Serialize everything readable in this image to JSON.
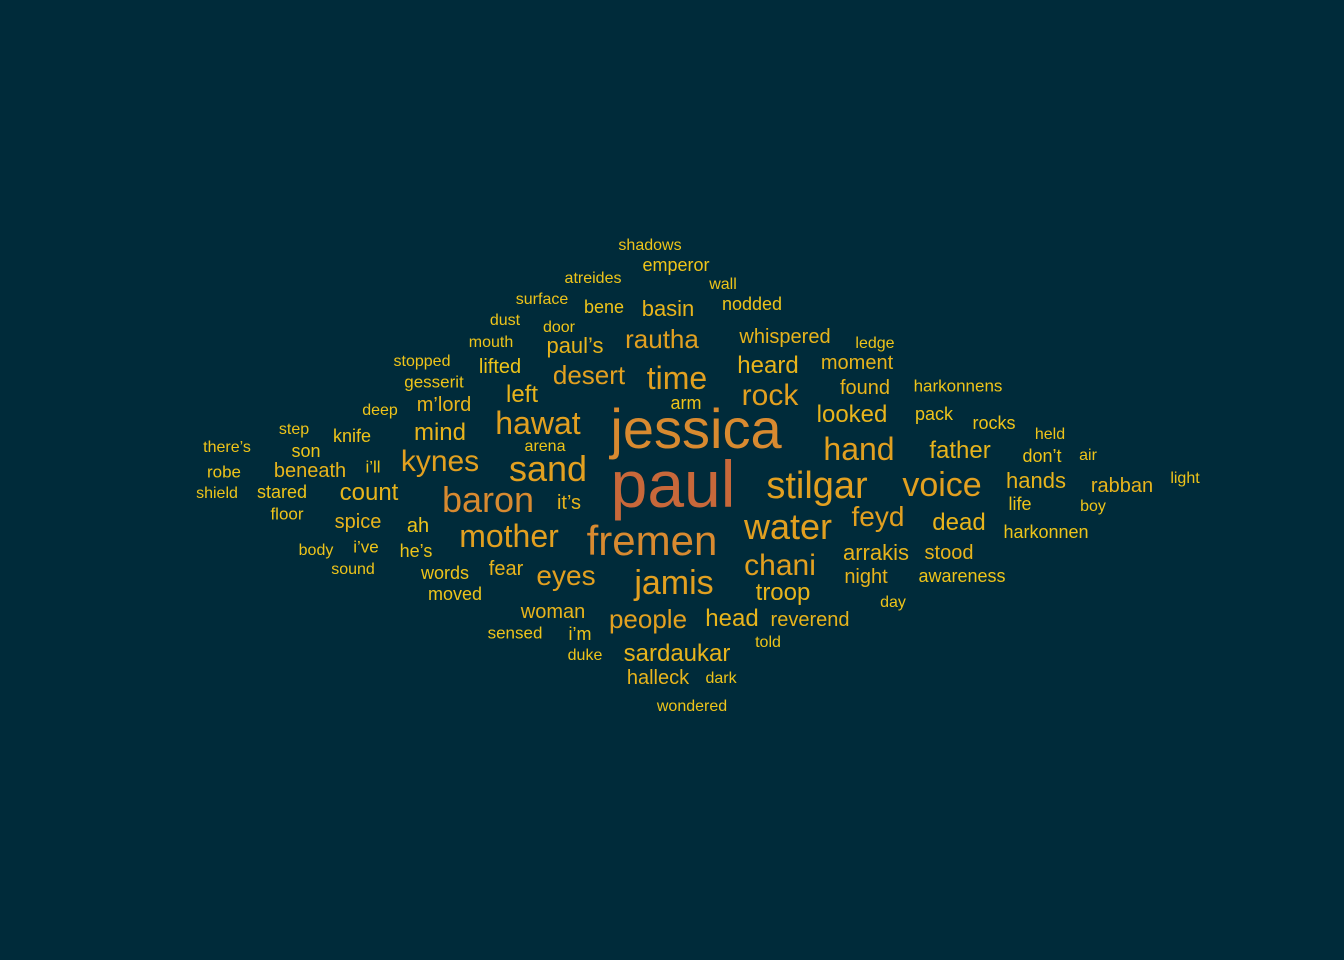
{
  "colors": {
    "background": "#002b3a",
    "rust": "#c8683a",
    "orange": "#d88a30",
    "amber": "#e2a020",
    "gold": "#e8b41c",
    "yellow": "#eec41a"
  },
  "words": [
    {
      "text": "paul",
      "tone": "rust"
    },
    {
      "text": "jessica",
      "tone": "orange"
    },
    {
      "text": "fremen",
      "tone": "orange"
    },
    {
      "text": "stilgar",
      "tone": "amber"
    },
    {
      "text": "water",
      "tone": "amber"
    },
    {
      "text": "baron",
      "tone": "orange"
    },
    {
      "text": "sand",
      "tone": "amber"
    },
    {
      "text": "jamis",
      "tone": "amber"
    },
    {
      "text": "voice",
      "tone": "amber"
    },
    {
      "text": "mother",
      "tone": "amber"
    },
    {
      "text": "hawat",
      "tone": "amber"
    },
    {
      "text": "time",
      "tone": "amber"
    },
    {
      "text": "hand",
      "tone": "amber"
    },
    {
      "text": "chani",
      "tone": "amber"
    },
    {
      "text": "kynes",
      "tone": "amber"
    },
    {
      "text": "rock",
      "tone": "amber"
    },
    {
      "text": "desert",
      "tone": "amber"
    },
    {
      "text": "eyes",
      "tone": "amber"
    },
    {
      "text": "feyd",
      "tone": "amber"
    },
    {
      "text": "people",
      "tone": "amber"
    },
    {
      "text": "rautha",
      "tone": "amber"
    },
    {
      "text": "father",
      "tone": "gold"
    },
    {
      "text": "count",
      "tone": "gold"
    },
    {
      "text": "mind",
      "tone": "gold"
    },
    {
      "text": "heard",
      "tone": "gold"
    },
    {
      "text": "sardaukar",
      "tone": "gold"
    },
    {
      "text": "troop",
      "tone": "gold"
    },
    {
      "text": "looked",
      "tone": "gold"
    },
    {
      "text": "left",
      "tone": "gold"
    },
    {
      "text": "head",
      "tone": "gold"
    },
    {
      "text": "dead",
      "tone": "gold"
    },
    {
      "text": "arrakis",
      "tone": "gold"
    },
    {
      "text": "hands",
      "tone": "gold"
    },
    {
      "text": "basin",
      "tone": "gold"
    },
    {
      "text": "paul’s",
      "tone": "gold"
    },
    {
      "text": "whispered",
      "tone": "gold"
    },
    {
      "text": "beneath",
      "tone": "gold"
    },
    {
      "text": "spice",
      "tone": "gold"
    },
    {
      "text": "woman",
      "tone": "gold"
    },
    {
      "text": "night",
      "tone": "gold"
    },
    {
      "text": "fear",
      "tone": "gold"
    },
    {
      "text": "it’s",
      "tone": "gold"
    },
    {
      "text": "m’lord",
      "tone": "gold"
    },
    {
      "text": "moment",
      "tone": "gold"
    },
    {
      "text": "found",
      "tone": "gold"
    },
    {
      "text": "halleck",
      "tone": "gold"
    },
    {
      "text": "reverend",
      "tone": "gold"
    },
    {
      "text": "rabban",
      "tone": "gold"
    },
    {
      "text": "stood",
      "tone": "gold"
    },
    {
      "text": "lifted",
      "tone": "yellow"
    },
    {
      "text": "stared",
      "tone": "yellow"
    },
    {
      "text": "ah",
      "tone": "yellow"
    },
    {
      "text": "words",
      "tone": "yellow"
    },
    {
      "text": "moved",
      "tone": "yellow"
    },
    {
      "text": "nodded",
      "tone": "yellow"
    },
    {
      "text": "emperor",
      "tone": "yellow"
    },
    {
      "text": "rocks",
      "tone": "yellow"
    },
    {
      "text": "pack",
      "tone": "yellow"
    },
    {
      "text": "he’s",
      "tone": "yellow"
    },
    {
      "text": "don’t",
      "tone": "yellow"
    },
    {
      "text": "knife",
      "tone": "yellow"
    },
    {
      "text": "son",
      "tone": "yellow"
    },
    {
      "text": "life",
      "tone": "yellow"
    },
    {
      "text": "awareness",
      "tone": "yellow"
    },
    {
      "text": "i’m",
      "tone": "yellow"
    },
    {
      "text": "harkonnen",
      "tone": "yellow"
    },
    {
      "text": "harkonnens",
      "tone": "yellow"
    },
    {
      "text": "arm",
      "tone": "yellow"
    },
    {
      "text": "bene",
      "tone": "yellow"
    },
    {
      "text": "sensed",
      "tone": "yellow"
    },
    {
      "text": "gesserit",
      "tone": "yellow"
    },
    {
      "text": "i’ve",
      "tone": "yellow"
    },
    {
      "text": "i’ll",
      "tone": "yellow"
    },
    {
      "text": "robe",
      "tone": "yellow"
    },
    {
      "text": "floor",
      "tone": "yellow"
    },
    {
      "text": "shadows",
      "tone": "yellow"
    },
    {
      "text": "atreides",
      "tone": "yellow"
    },
    {
      "text": "wall",
      "tone": "yellow"
    },
    {
      "text": "surface",
      "tone": "yellow"
    },
    {
      "text": "dust",
      "tone": "yellow"
    },
    {
      "text": "door",
      "tone": "yellow"
    },
    {
      "text": "mouth",
      "tone": "yellow"
    },
    {
      "text": "stopped",
      "tone": "yellow"
    },
    {
      "text": "ledge",
      "tone": "yellow"
    },
    {
      "text": "deep",
      "tone": "yellow"
    },
    {
      "text": "step",
      "tone": "yellow"
    },
    {
      "text": "there’s",
      "tone": "yellow"
    },
    {
      "text": "held",
      "tone": "yellow"
    },
    {
      "text": "air",
      "tone": "yellow"
    },
    {
      "text": "shield",
      "tone": "yellow"
    },
    {
      "text": "light",
      "tone": "yellow"
    },
    {
      "text": "boy",
      "tone": "yellow"
    },
    {
      "text": "body",
      "tone": "yellow"
    },
    {
      "text": "sound",
      "tone": "yellow"
    },
    {
      "text": "day",
      "tone": "yellow"
    },
    {
      "text": "duke",
      "tone": "yellow"
    },
    {
      "text": "told",
      "tone": "yellow"
    },
    {
      "text": "dark",
      "tone": "yellow"
    },
    {
      "text": "wondered",
      "tone": "yellow"
    },
    {
      "text": "arena",
      "tone": "yellow"
    }
  ]
}
